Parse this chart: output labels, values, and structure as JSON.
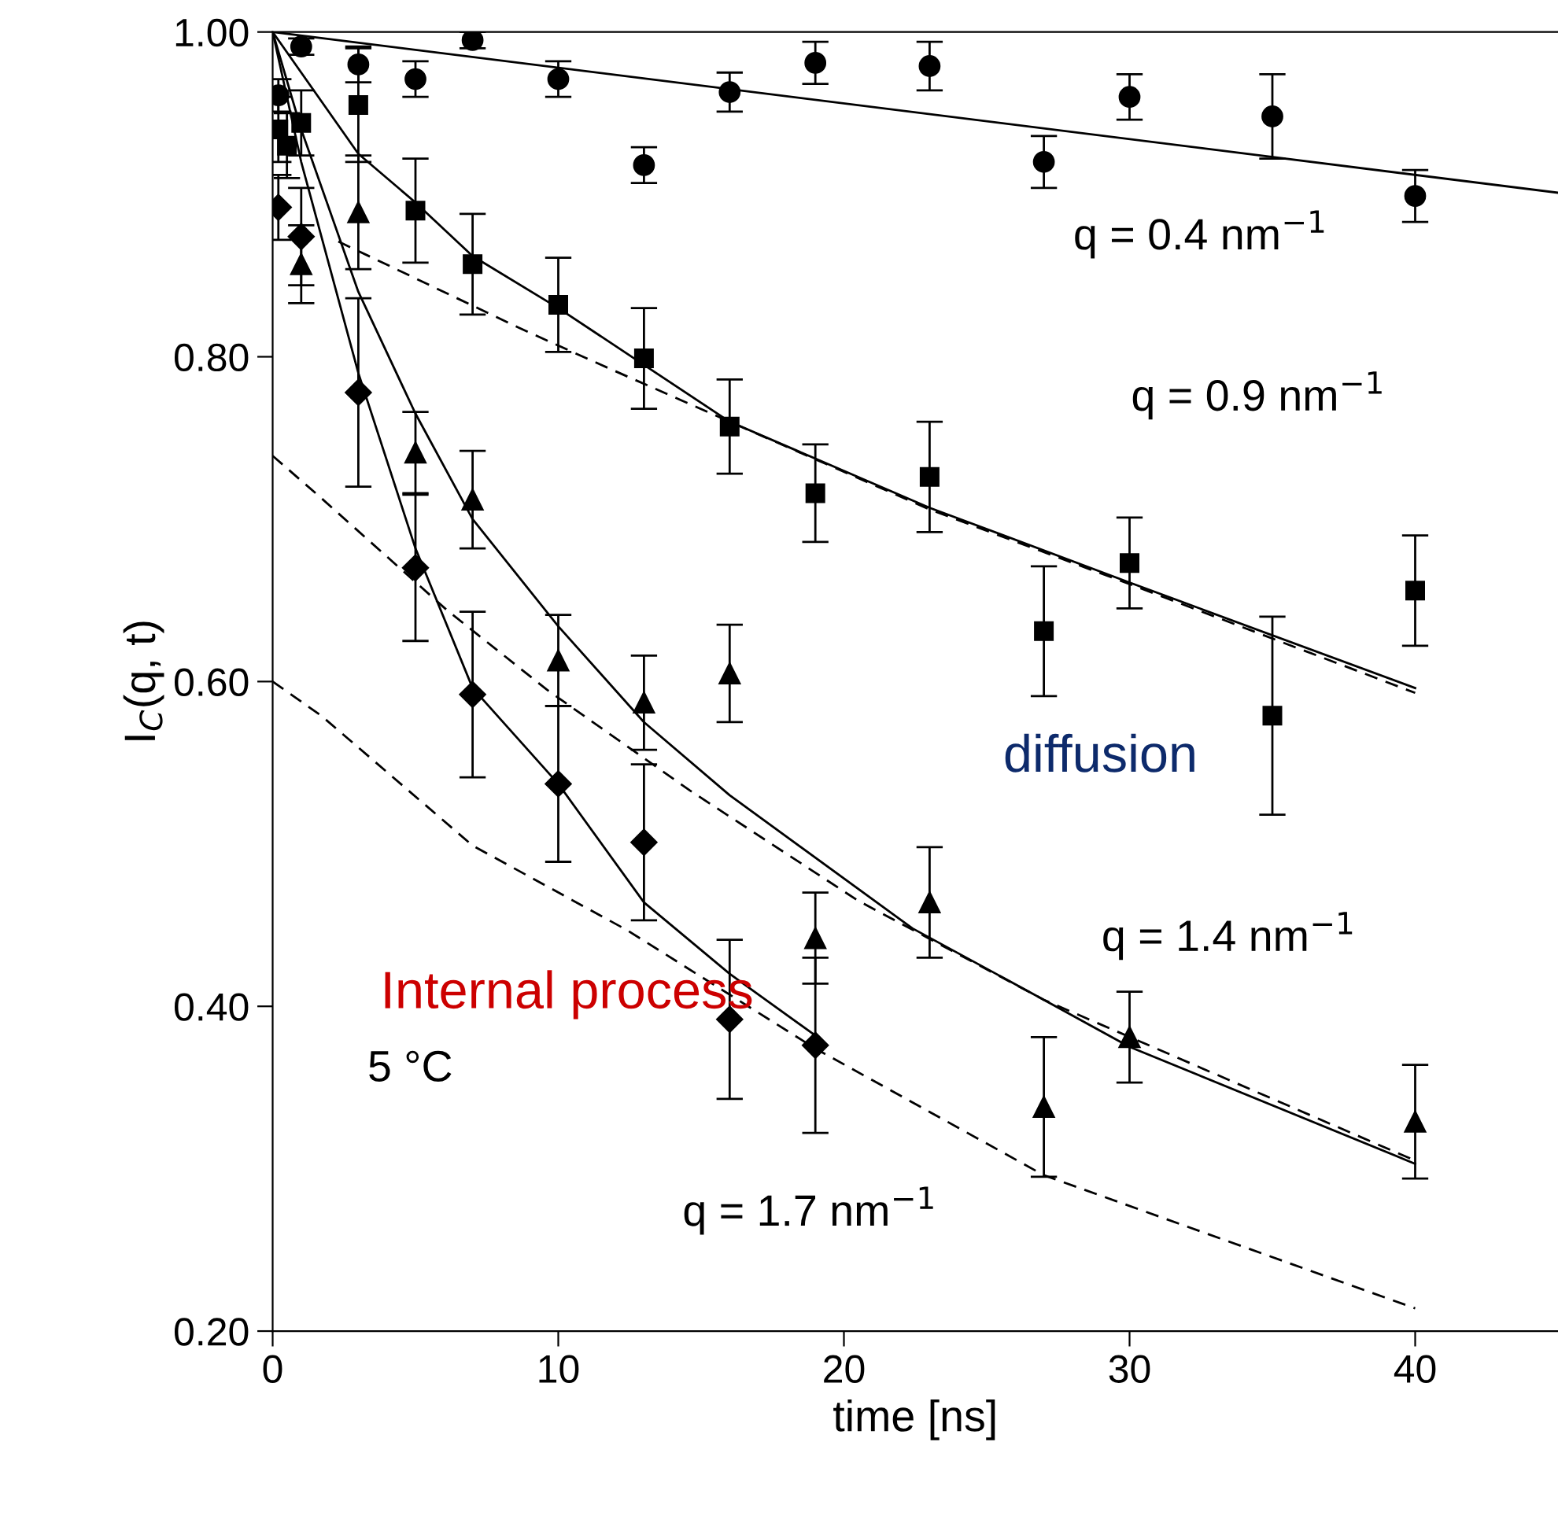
{
  "chart_data": {
    "type": "scatter",
    "xlabel": "time [ns]",
    "ylabel": "I$_{C}$(q, t)",
    "xlim": [
      0,
      45
    ],
    "ylim": [
      0.2,
      1.0
    ],
    "xticks": [
      0,
      10,
      20,
      30,
      40
    ],
    "yticks": [
      {
        "value": 0.2,
        "label": "0.20"
      },
      {
        "value": 0.4,
        "label": "0.40"
      },
      {
        "value": 0.6,
        "label": "0.60"
      },
      {
        "value": 0.8,
        "label": "0.80"
      },
      {
        "value": 1.0,
        "label": "1.00"
      }
    ],
    "grid": false,
    "series": [
      {
        "marker": "circle",
        "color": "#000000",
        "x": [
          0.2,
          1,
          3,
          5,
          7,
          10,
          13,
          16,
          19,
          23,
          27,
          30,
          35,
          40
        ],
        "values": [
          0.961,
          0.991,
          0.98,
          0.971,
          0.995,
          0.971,
          0.918,
          0.963,
          0.981,
          0.979,
          0.92,
          0.96,
          0.948,
          0.899
        ],
        "errors": [
          0.01,
          0.005,
          0.011,
          0.011,
          0.005,
          0.011,
          0.011,
          0.012,
          0.013,
          0.015,
          0.016,
          0.014,
          0.026,
          0.016
        ]
      },
      {
        "marker": "square",
        "color": "#000000",
        "x": [
          0.2,
          0.5,
          1,
          3,
          5,
          7,
          10,
          13,
          16,
          19,
          23,
          27,
          30,
          35,
          40
        ],
        "values": [
          0.94,
          0.93,
          0.944,
          0.955,
          0.89,
          0.857,
          0.832,
          0.799,
          0.757,
          0.716,
          0.726,
          0.631,
          0.673,
          0.579,
          0.656
        ],
        "errors": [
          0.02,
          0.02,
          0.02,
          0.035,
          0.032,
          0.031,
          0.029,
          0.031,
          0.029,
          0.03,
          0.034,
          0.04,
          0.028,
          0.061,
          0.034
        ]
      },
      {
        "marker": "triangle",
        "color": "#000000",
        "x": [
          1,
          3,
          5,
          7,
          10,
          13,
          16,
          19,
          23,
          27,
          30,
          40
        ],
        "values": [
          0.857,
          0.889,
          0.741,
          0.712,
          0.613,
          0.587,
          0.605,
          0.442,
          0.464,
          0.338,
          0.381,
          0.329
        ],
        "errors": [
          0.024,
          0.035,
          0.025,
          0.03,
          0.028,
          0.029,
          0.03,
          0.028,
          0.034,
          0.043,
          0.028,
          0.035
        ]
      },
      {
        "marker": "diamond",
        "color": "#000000",
        "x": [
          0.2,
          1,
          3,
          5,
          7,
          10,
          13,
          16,
          19
        ],
        "values": [
          0.892,
          0.874,
          0.778,
          0.67,
          0.592,
          0.537,
          0.501,
          0.392,
          0.376
        ],
        "errors": [
          0.02,
          0.03,
          0.058,
          0.045,
          0.051,
          0.048,
          0.048,
          0.049,
          0.054
        ]
      },
      {
        "type": "line",
        "line_style": "solid",
        "color": "#000000",
        "x": [
          0,
          45
        ],
        "values": [
          1.0,
          0.901
        ]
      },
      {
        "type": "line",
        "line_style": "solid",
        "color": "#000000",
        "x": [
          0,
          1,
          3,
          5,
          7,
          10,
          13,
          16,
          23,
          30,
          40
        ],
        "values": [
          1.0,
          0.975,
          0.925,
          0.895,
          0.862,
          0.83,
          0.795,
          0.76,
          0.707,
          0.661,
          0.596
        ]
      },
      {
        "type": "line",
        "line_style": "dashed",
        "color": "#000000",
        "x": [
          2.3,
          8.6,
          11.5,
          16,
          23,
          30,
          40
        ],
        "values": [
          0.871,
          0.818,
          0.795,
          0.76,
          0.706,
          0.66,
          0.593
        ]
      },
      {
        "type": "line",
        "line_style": "solid",
        "color": "#000000",
        "x": [
          0,
          1,
          3,
          5,
          7,
          10,
          13,
          16,
          22.4,
          27,
          30,
          40
        ],
        "values": [
          1.0,
          0.94,
          0.84,
          0.765,
          0.7,
          0.634,
          0.575,
          0.53,
          0.448,
          0.404,
          0.375,
          0.303
        ]
      },
      {
        "type": "line",
        "line_style": "dashed",
        "color": "#000000",
        "x": [
          0,
          1.7,
          6.1,
          9.6,
          14.6,
          20.5,
          27,
          40
        ],
        "values": [
          0.739,
          0.713,
          0.644,
          0.595,
          0.533,
          0.465,
          0.404,
          0.305
        ]
      },
      {
        "type": "line",
        "line_style": "solid",
        "color": "#000000",
        "x": [
          0,
          1,
          3,
          5,
          7,
          10,
          13,
          16,
          19
        ],
        "values": [
          1.0,
          0.92,
          0.79,
          0.682,
          0.596,
          0.537,
          0.464,
          0.42,
          0.382
        ]
      },
      {
        "type": "line",
        "line_style": "dashed",
        "color": "#000000",
        "x": [
          0,
          1.7,
          7,
          12.4,
          19,
          27,
          40
        ],
        "values": [
          0.6,
          0.579,
          0.499,
          0.447,
          0.374,
          0.296,
          0.214
        ]
      }
    ],
    "annotations": [
      "q = 0.4 nm$^{−1}$",
      "q = 0.9 nm$^{−1}$",
      "q = 1.4 nm$^{−1}$",
      "q = 1.7 nm$^{−1}$",
      "diffusion",
      "Internal process",
      "5 °C"
    ]
  }
}
